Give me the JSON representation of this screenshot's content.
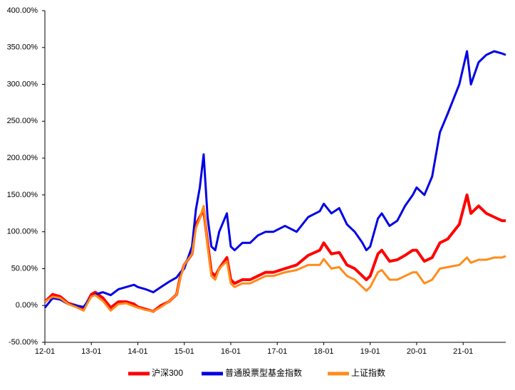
{
  "chart_data": {
    "type": "line",
    "x": [
      "12-01",
      "12-03",
      "12-05",
      "12-07",
      "12-09",
      "12-11",
      "12-12",
      "13-01",
      "13-02",
      "13-04",
      "13-06",
      "13-08",
      "13-10",
      "13-12",
      "14-01",
      "14-03",
      "14-05",
      "14-07",
      "14-09",
      "14-11",
      "14-12",
      "15-01",
      "15-03",
      "15-04",
      "15-05",
      "15-06",
      "15-07",
      "15-08",
      "15-09",
      "15-10",
      "15-12",
      "16-01",
      "16-02",
      "16-04",
      "16-06",
      "16-08",
      "16-10",
      "16-12",
      "17-03",
      "17-06",
      "17-09",
      "17-12",
      "18-01",
      "18-03",
      "18-05",
      "18-07",
      "18-09",
      "18-11",
      "18-12",
      "19-01",
      "19-03",
      "19-04",
      "19-06",
      "19-08",
      "19-10",
      "19-12",
      "20-01",
      "20-03",
      "20-05",
      "20-07",
      "20-09",
      "20-12",
      "21-02",
      "21-03",
      "21-05",
      "21-07",
      "21-09",
      "21-11",
      "21-12"
    ],
    "series": [
      {
        "name": "沪深300",
        "color": "#ff0000",
        "values": [
          5,
          15,
          12,
          3,
          0,
          -5,
          5,
          15,
          18,
          10,
          -3,
          5,
          5,
          2,
          -2,
          -5,
          -8,
          0,
          5,
          15,
          40,
          55,
          70,
          110,
          120,
          130,
          85,
          45,
          40,
          50,
          65,
          35,
          30,
          35,
          35,
          40,
          45,
          45,
          50,
          55,
          68,
          75,
          85,
          70,
          72,
          55,
          50,
          40,
          35,
          40,
          70,
          75,
          60,
          62,
          68,
          75,
          75,
          60,
          65,
          85,
          90,
          110,
          150,
          125,
          135,
          125,
          120,
          115,
          115
        ]
      },
      {
        "name": "普通股票型基金指数",
        "color": "#0000e6",
        "values": [
          -3,
          10,
          8,
          2,
          0,
          -2,
          5,
          12,
          15,
          18,
          14,
          22,
          25,
          28,
          25,
          22,
          18,
          25,
          32,
          38,
          45,
          50,
          80,
          130,
          160,
          205,
          120,
          80,
          75,
          100,
          125,
          80,
          75,
          85,
          85,
          95,
          100,
          100,
          108,
          100,
          120,
          128,
          138,
          125,
          132,
          110,
          100,
          85,
          75,
          80,
          118,
          125,
          108,
          115,
          135,
          150,
          160,
          150,
          175,
          235,
          260,
          300,
          345,
          300,
          330,
          340,
          345,
          342,
          340
        ]
      },
      {
        "name": "上证指数",
        "color": "#ff8c1a",
        "values": [
          5,
          12,
          10,
          2,
          -2,
          -7,
          3,
          12,
          14,
          6,
          -7,
          2,
          3,
          -1,
          -3,
          -6,
          -8,
          -2,
          5,
          15,
          38,
          55,
          70,
          105,
          118,
          135,
          80,
          40,
          35,
          50,
          60,
          30,
          25,
          30,
          30,
          35,
          40,
          40,
          45,
          48,
          55,
          55,
          63,
          50,
          52,
          40,
          35,
          25,
          20,
          25,
          45,
          48,
          35,
          35,
          40,
          45,
          45,
          30,
          35,
          50,
          52,
          55,
          65,
          58,
          62,
          62,
          65,
          65,
          67
        ]
      }
    ],
    "xlim": [
      "12-01",
      "21-12"
    ],
    "xticks": [
      "12-01",
      "13-01",
      "14-01",
      "15-01",
      "16-01",
      "17-01",
      "18-01",
      "19-01",
      "20-01",
      "21-01"
    ],
    "ylim": [
      -50,
      400
    ],
    "yticks": [
      {
        "value": -50,
        "label": "-50.00%"
      },
      {
        "value": 0,
        "label": "0.00%"
      },
      {
        "value": 50,
        "label": "50.00%"
      },
      {
        "value": 100,
        "label": "100.00%"
      },
      {
        "value": 150,
        "label": "150.00%"
      },
      {
        "value": 200,
        "label": "200.00%"
      },
      {
        "value": 250,
        "label": "250.00%"
      },
      {
        "value": 300,
        "label": "300.00%"
      },
      {
        "value": 350,
        "label": "350.00%"
      },
      {
        "value": 400,
        "label": "400.00%"
      }
    ],
    "grid": false,
    "legend": "bottom"
  }
}
